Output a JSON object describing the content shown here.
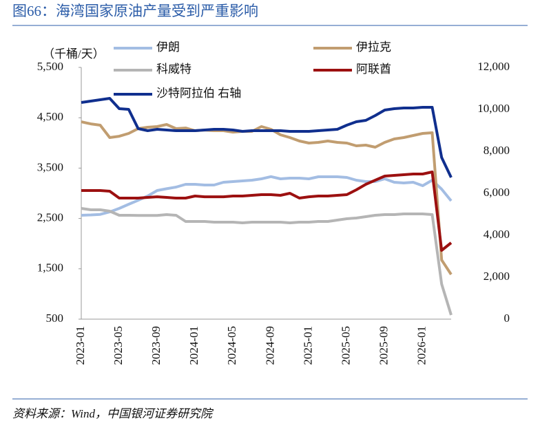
{
  "chart_data": {
    "type": "line",
    "title": "图66：海湾国家原油产量受到严重影响",
    "y_label": "（千桶/天）",
    "source": "资料来源：Wind，中国银河证券研究院",
    "categories": [
      "2023-01",
      null,
      null,
      null,
      "2023-05",
      null,
      null,
      null,
      "2023-09",
      null,
      null,
      null,
      "2024-01",
      null,
      null,
      null,
      "2024-05",
      null,
      null,
      null,
      "2024-09",
      null,
      null,
      null,
      "2025-01",
      null,
      null,
      null,
      "2025-05",
      null,
      null,
      null,
      "2025-09",
      null,
      null,
      null,
      "2026-01",
      null,
      null,
      null
    ],
    "ylim": [
      500,
      5500
    ],
    "yticks": [
      500,
      {
        "value": 1500,
        "label": "1,500"
      },
      {
        "value": 2500,
        "label": "2,500"
      },
      {
        "value": 3500,
        "label": "3,500"
      },
      {
        "value": 4500,
        "label": "4,500"
      },
      {
        "value": 5500,
        "label": "5,500"
      }
    ],
    "y2lim": [
      0,
      12000
    ],
    "y2ticks": [
      0,
      {
        "value": 2000,
        "label": "2,000"
      },
      {
        "value": 4000,
        "label": "4,000"
      },
      {
        "value": 6000,
        "label": "6,000"
      },
      {
        "value": 8000,
        "label": "8,000"
      },
      {
        "value": 10000,
        "label": "10,000"
      },
      {
        "value": 12000,
        "label": "12,000"
      }
    ],
    "series": [
      {
        "name": "伊朗",
        "color": "#a3bde3",
        "values": [
          2563,
          2570,
          2580,
          2630,
          2700,
          2781,
          2860,
          2945,
          3055,
          3090,
          3123,
          3178,
          3178,
          3164,
          3164,
          3218,
          3232,
          3246,
          3260,
          3287,
          3330,
          3287,
          3300,
          3300,
          3287,
          3328,
          3328,
          3328,
          3314,
          3260,
          3232,
          3232,
          3287,
          3218,
          3205,
          3218,
          3150,
          3260,
          3082,
          2850
        ]
      },
      {
        "name": "伊拉克",
        "color": "#c19d70",
        "values": [
          4420,
          4379,
          4352,
          4106,
          4133,
          4188,
          4284,
          4311,
          4325,
          4366,
          4284,
          4297,
          4243,
          4256,
          4243,
          4243,
          4215,
          4229,
          4229,
          4325,
          4270,
          4161,
          4106,
          4038,
          3997,
          4011,
          4038,
          4011,
          3997,
          3942,
          3956,
          3915,
          4011,
          4079,
          4106,
          4147,
          4188,
          4202,
          1675,
          1388
        ]
      },
      {
        "name": "科威特",
        "color": "#b5b5b5",
        "values": [
          2700,
          2672,
          2672,
          2645,
          2563,
          2563,
          2560,
          2560,
          2560,
          2576,
          2563,
          2440,
          2440,
          2440,
          2426,
          2426,
          2426,
          2412,
          2426,
          2426,
          2426,
          2426,
          2412,
          2426,
          2426,
          2440,
          2440,
          2467,
          2494,
          2508,
          2535,
          2563,
          2576,
          2576,
          2590,
          2590,
          2590,
          2576,
          1197,
          582
        ]
      },
      {
        "name": "阿联酋",
        "color": "#9c1010",
        "values": [
          3054,
          3054,
          3054,
          3041,
          2904,
          2904,
          2904,
          2918,
          2931,
          2918,
          2904,
          2904,
          2945,
          2931,
          2931,
          2931,
          2945,
          2945,
          2959,
          2972,
          2972,
          2959,
          3000,
          2904,
          2931,
          2945,
          2945,
          2959,
          2972,
          3068,
          3177,
          3259,
          3341,
          3355,
          3369,
          3382,
          3382,
          3423,
          1866,
          2016
        ]
      },
      {
        "name": "沙特阿拉伯 右轴",
        "color": "#102f8e",
        "axis": "y2",
        "values": [
          10329,
          10394,
          10460,
          10526,
          10034,
          10001,
          9083,
          8984,
          9050,
          9017,
          8984,
          8984,
          8984,
          9017,
          9050,
          9050,
          9017,
          8952,
          8984,
          8984,
          8984,
          8984,
          8952,
          8952,
          8952,
          8984,
          9017,
          9050,
          9247,
          9411,
          9476,
          9706,
          9968,
          10034,
          10066,
          10066,
          10099,
          10099,
          7706,
          6755
        ]
      }
    ]
  }
}
